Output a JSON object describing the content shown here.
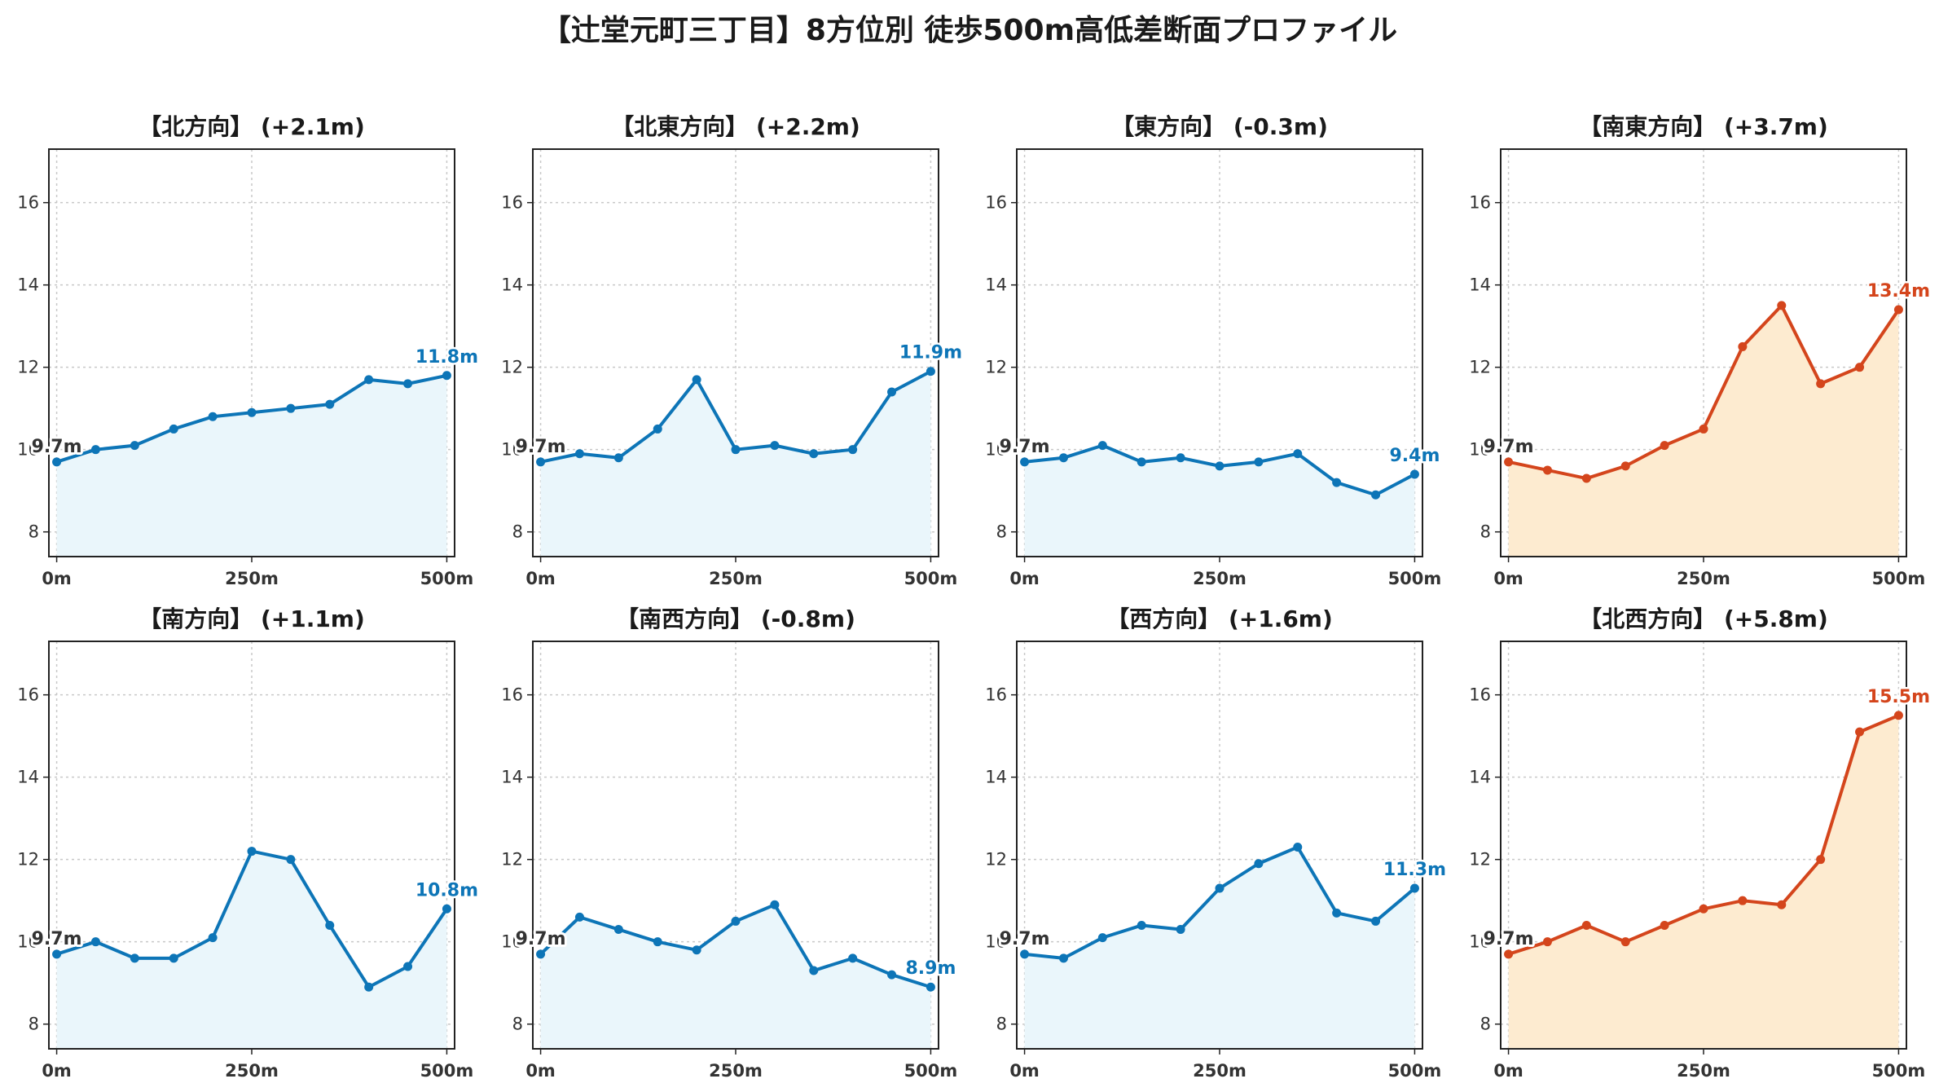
{
  "title": "【辻堂元町三丁目】8方位別 徒歩500m高低差断面プロファイル",
  "colors": {
    "up": "#d4451c",
    "up_fill": "#fdebd0",
    "flat": "#0d75b7",
    "flat_fill": "#eaf6fb",
    "grid": "#c8c8c8"
  },
  "chart_data": [
    {
      "type": "area",
      "title": "【北方向】 (+2.1m)",
      "x": [
        0,
        50,
        100,
        150,
        200,
        250,
        300,
        350,
        400,
        450,
        500
      ],
      "y": [
        9.7,
        10.0,
        10.1,
        10.5,
        10.8,
        10.9,
        11.0,
        11.1,
        11.7,
        11.6,
        11.8
      ],
      "start_label": "9.7m",
      "end_label": "11.8m",
      "color": "flat",
      "xticks": [
        "0m",
        "250m",
        "500m"
      ],
      "yticks": [
        "8",
        "10",
        "12",
        "14",
        "16"
      ],
      "ylim": [
        7.4,
        17.3
      ],
      "xlim": [
        -10,
        510
      ],
      "grid": true
    },
    {
      "type": "area",
      "title": "【北東方向】 (+2.2m)",
      "x": [
        0,
        50,
        100,
        150,
        200,
        250,
        300,
        350,
        400,
        450,
        500
      ],
      "y": [
        9.7,
        9.9,
        9.8,
        10.5,
        11.7,
        10.0,
        10.1,
        9.9,
        10.0,
        11.4,
        11.9
      ],
      "start_label": "9.7m",
      "end_label": "11.9m",
      "color": "flat",
      "xticks": [
        "0m",
        "250m",
        "500m"
      ],
      "yticks": [
        "8",
        "10",
        "12",
        "14",
        "16"
      ],
      "ylim": [
        7.4,
        17.3
      ],
      "xlim": [
        -10,
        510
      ],
      "grid": true
    },
    {
      "type": "area",
      "title": "【東方向】 (-0.3m)",
      "x": [
        0,
        50,
        100,
        150,
        200,
        250,
        300,
        350,
        400,
        450,
        500
      ],
      "y": [
        9.7,
        9.8,
        10.1,
        9.7,
        9.8,
        9.6,
        9.7,
        9.9,
        9.2,
        8.9,
        9.4
      ],
      "start_label": "9.7m",
      "end_label": "9.4m",
      "color": "flat",
      "xticks": [
        "0m",
        "250m",
        "500m"
      ],
      "yticks": [
        "8",
        "10",
        "12",
        "14",
        "16"
      ],
      "ylim": [
        7.4,
        17.3
      ],
      "xlim": [
        -10,
        510
      ],
      "grid": true
    },
    {
      "type": "area",
      "title": "【南東方向】 (+3.7m)",
      "x": [
        0,
        50,
        100,
        150,
        200,
        250,
        300,
        350,
        400,
        450,
        500
      ],
      "y": [
        9.7,
        9.5,
        9.3,
        9.6,
        10.1,
        10.5,
        12.5,
        13.5,
        11.6,
        12.0,
        13.4
      ],
      "start_label": "9.7m",
      "end_label": "13.4m",
      "color": "up",
      "xticks": [
        "0m",
        "250m",
        "500m"
      ],
      "yticks": [
        "8",
        "10",
        "12",
        "14",
        "16"
      ],
      "ylim": [
        7.4,
        17.3
      ],
      "xlim": [
        -10,
        510
      ],
      "grid": true
    },
    {
      "type": "area",
      "title": "【南方向】 (+1.1m)",
      "x": [
        0,
        50,
        100,
        150,
        200,
        250,
        300,
        350,
        400,
        450,
        500
      ],
      "y": [
        9.7,
        10.0,
        9.6,
        9.6,
        10.1,
        12.2,
        12.0,
        10.4,
        8.9,
        9.4,
        10.8
      ],
      "start_label": "9.7m",
      "end_label": "10.8m",
      "color": "flat",
      "xticks": [
        "0m",
        "250m",
        "500m"
      ],
      "yticks": [
        "8",
        "10",
        "12",
        "14",
        "16"
      ],
      "ylim": [
        7.4,
        17.3
      ],
      "xlim": [
        -10,
        510
      ],
      "grid": true
    },
    {
      "type": "area",
      "title": "【南西方向】 (-0.8m)",
      "x": [
        0,
        50,
        100,
        150,
        200,
        250,
        300,
        350,
        400,
        450,
        500
      ],
      "y": [
        9.7,
        10.6,
        10.3,
        10.0,
        9.8,
        10.5,
        10.9,
        9.3,
        9.6,
        9.2,
        8.9
      ],
      "start_label": "9.7m",
      "end_label": "8.9m",
      "color": "flat",
      "xticks": [
        "0m",
        "250m",
        "500m"
      ],
      "yticks": [
        "8",
        "10",
        "12",
        "14",
        "16"
      ],
      "ylim": [
        7.4,
        17.3
      ],
      "xlim": [
        -10,
        510
      ],
      "grid": true
    },
    {
      "type": "area",
      "title": "【西方向】 (+1.6m)",
      "x": [
        0,
        50,
        100,
        150,
        200,
        250,
        300,
        350,
        400,
        450,
        500
      ],
      "y": [
        9.7,
        9.6,
        10.1,
        10.4,
        10.3,
        11.3,
        11.9,
        12.3,
        10.7,
        10.5,
        11.3
      ],
      "start_label": "9.7m",
      "end_label": "11.3m",
      "color": "flat",
      "xticks": [
        "0m",
        "250m",
        "500m"
      ],
      "yticks": [
        "8",
        "10",
        "12",
        "14",
        "16"
      ],
      "ylim": [
        7.4,
        17.3
      ],
      "xlim": [
        -10,
        510
      ],
      "grid": true
    },
    {
      "type": "area",
      "title": "【北西方向】 (+5.8m)",
      "x": [
        0,
        50,
        100,
        150,
        200,
        250,
        300,
        350,
        400,
        450,
        500
      ],
      "y": [
        9.7,
        10.0,
        10.4,
        10.0,
        10.4,
        10.8,
        11.0,
        10.9,
        12.0,
        15.1,
        15.5
      ],
      "start_label": "9.7m",
      "end_label": "15.5m",
      "color": "up",
      "xticks": [
        "0m",
        "250m",
        "500m"
      ],
      "yticks": [
        "8",
        "10",
        "12",
        "14",
        "16"
      ],
      "ylim": [
        7.4,
        17.3
      ],
      "xlim": [
        -10,
        510
      ],
      "grid": true
    }
  ]
}
